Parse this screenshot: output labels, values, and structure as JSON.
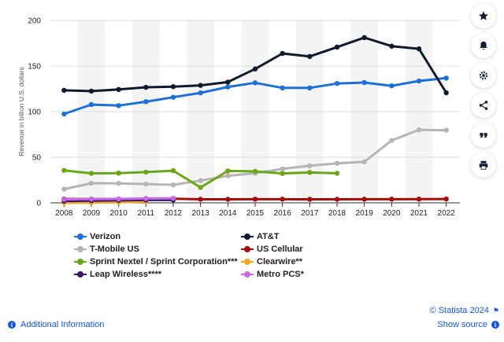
{
  "chart_data": {
    "type": "line",
    "ylabel": "Revenue in billion U.S. dollars",
    "xlabel": "",
    "x": [
      "2008",
      "2009",
      "2010",
      "2011",
      "2012",
      "2013",
      "2014",
      "2015",
      "2016",
      "2017",
      "2018",
      "2019",
      "2020",
      "2021",
      "2022"
    ],
    "ylim": [
      0,
      200
    ],
    "yticks": [
      0,
      50,
      100,
      150,
      200
    ],
    "grid": true,
    "legend_position": "bottom-left",
    "series": [
      {
        "name": "Verizon",
        "color": "#1f6fd8",
        "values": [
          97.4,
          107.8,
          106.6,
          110.9,
          115.8,
          120.6,
          127.1,
          131.6,
          126.0,
          126.0,
          130.9,
          131.9,
          128.3,
          133.6,
          136.8
        ]
      },
      {
        "name": "AT&T",
        "color": "#0f1a2d",
        "values": [
          123.4,
          122.5,
          124.3,
          126.7,
          127.4,
          128.8,
          132.4,
          146.8,
          163.8,
          160.5,
          170.8,
          181.2,
          171.8,
          168.9,
          120.7
        ]
      },
      {
        "name": "T-Mobile US",
        "color": "#b5b5b5",
        "values": [
          15.0,
          21.5,
          21.4,
          20.6,
          19.7,
          24.4,
          29.6,
          32.5,
          37.2,
          40.6,
          43.3,
          45.0,
          68.4,
          80.1,
          79.6
        ]
      },
      {
        "name": "US Cellular",
        "color": "#a50d0d",
        "values": [
          4.2,
          4.2,
          4.2,
          4.3,
          4.5,
          3.9,
          3.9,
          4.0,
          4.0,
          3.9,
          3.9,
          4.0,
          4.0,
          4.1,
          4.2
        ]
      },
      {
        "name": "Sprint Nextel / Sprint Corporation***",
        "color": "#6aa617",
        "values": [
          35.6,
          32.3,
          32.6,
          33.7,
          35.3,
          16.9,
          35.0,
          34.5,
          32.2,
          33.3,
          32.4,
          null,
          null,
          null,
          null
        ]
      },
      {
        "name": "Clearwire**",
        "color": "#f2a81d",
        "values": [
          0.0,
          0.3,
          0.6,
          1.3,
          null,
          null,
          null,
          null,
          null,
          null,
          null,
          null,
          null,
          null,
          null
        ]
      },
      {
        "name": "Leap Wireless****",
        "color": "#3b1a6e",
        "values": [
          2.0,
          2.4,
          2.7,
          3.1,
          3.1,
          null,
          null,
          null,
          null,
          null,
          null,
          null,
          null,
          null,
          null
        ]
      },
      {
        "name": "Metro PCS*",
        "color": "#c76ae8",
        "values": [
          3.8,
          4.2,
          4.3,
          4.8,
          5.0,
          null,
          null,
          null,
          null,
          null,
          null,
          null,
          null,
          null,
          null
        ]
      }
    ]
  },
  "toolbar": {
    "buttons": [
      {
        "icon": "star-icon",
        "name": "favorite-button"
      },
      {
        "icon": "bell-icon",
        "name": "notification-button"
      },
      {
        "icon": "gear-icon",
        "name": "settings-button"
      },
      {
        "icon": "share-icon",
        "name": "share-button"
      },
      {
        "icon": "quote-icon",
        "name": "cite-button"
      },
      {
        "icon": "print-icon",
        "name": "print-button"
      }
    ]
  },
  "footer": {
    "additional_info": "Additional Information",
    "credit": "© Statista 2024",
    "show_source": "Show source"
  }
}
